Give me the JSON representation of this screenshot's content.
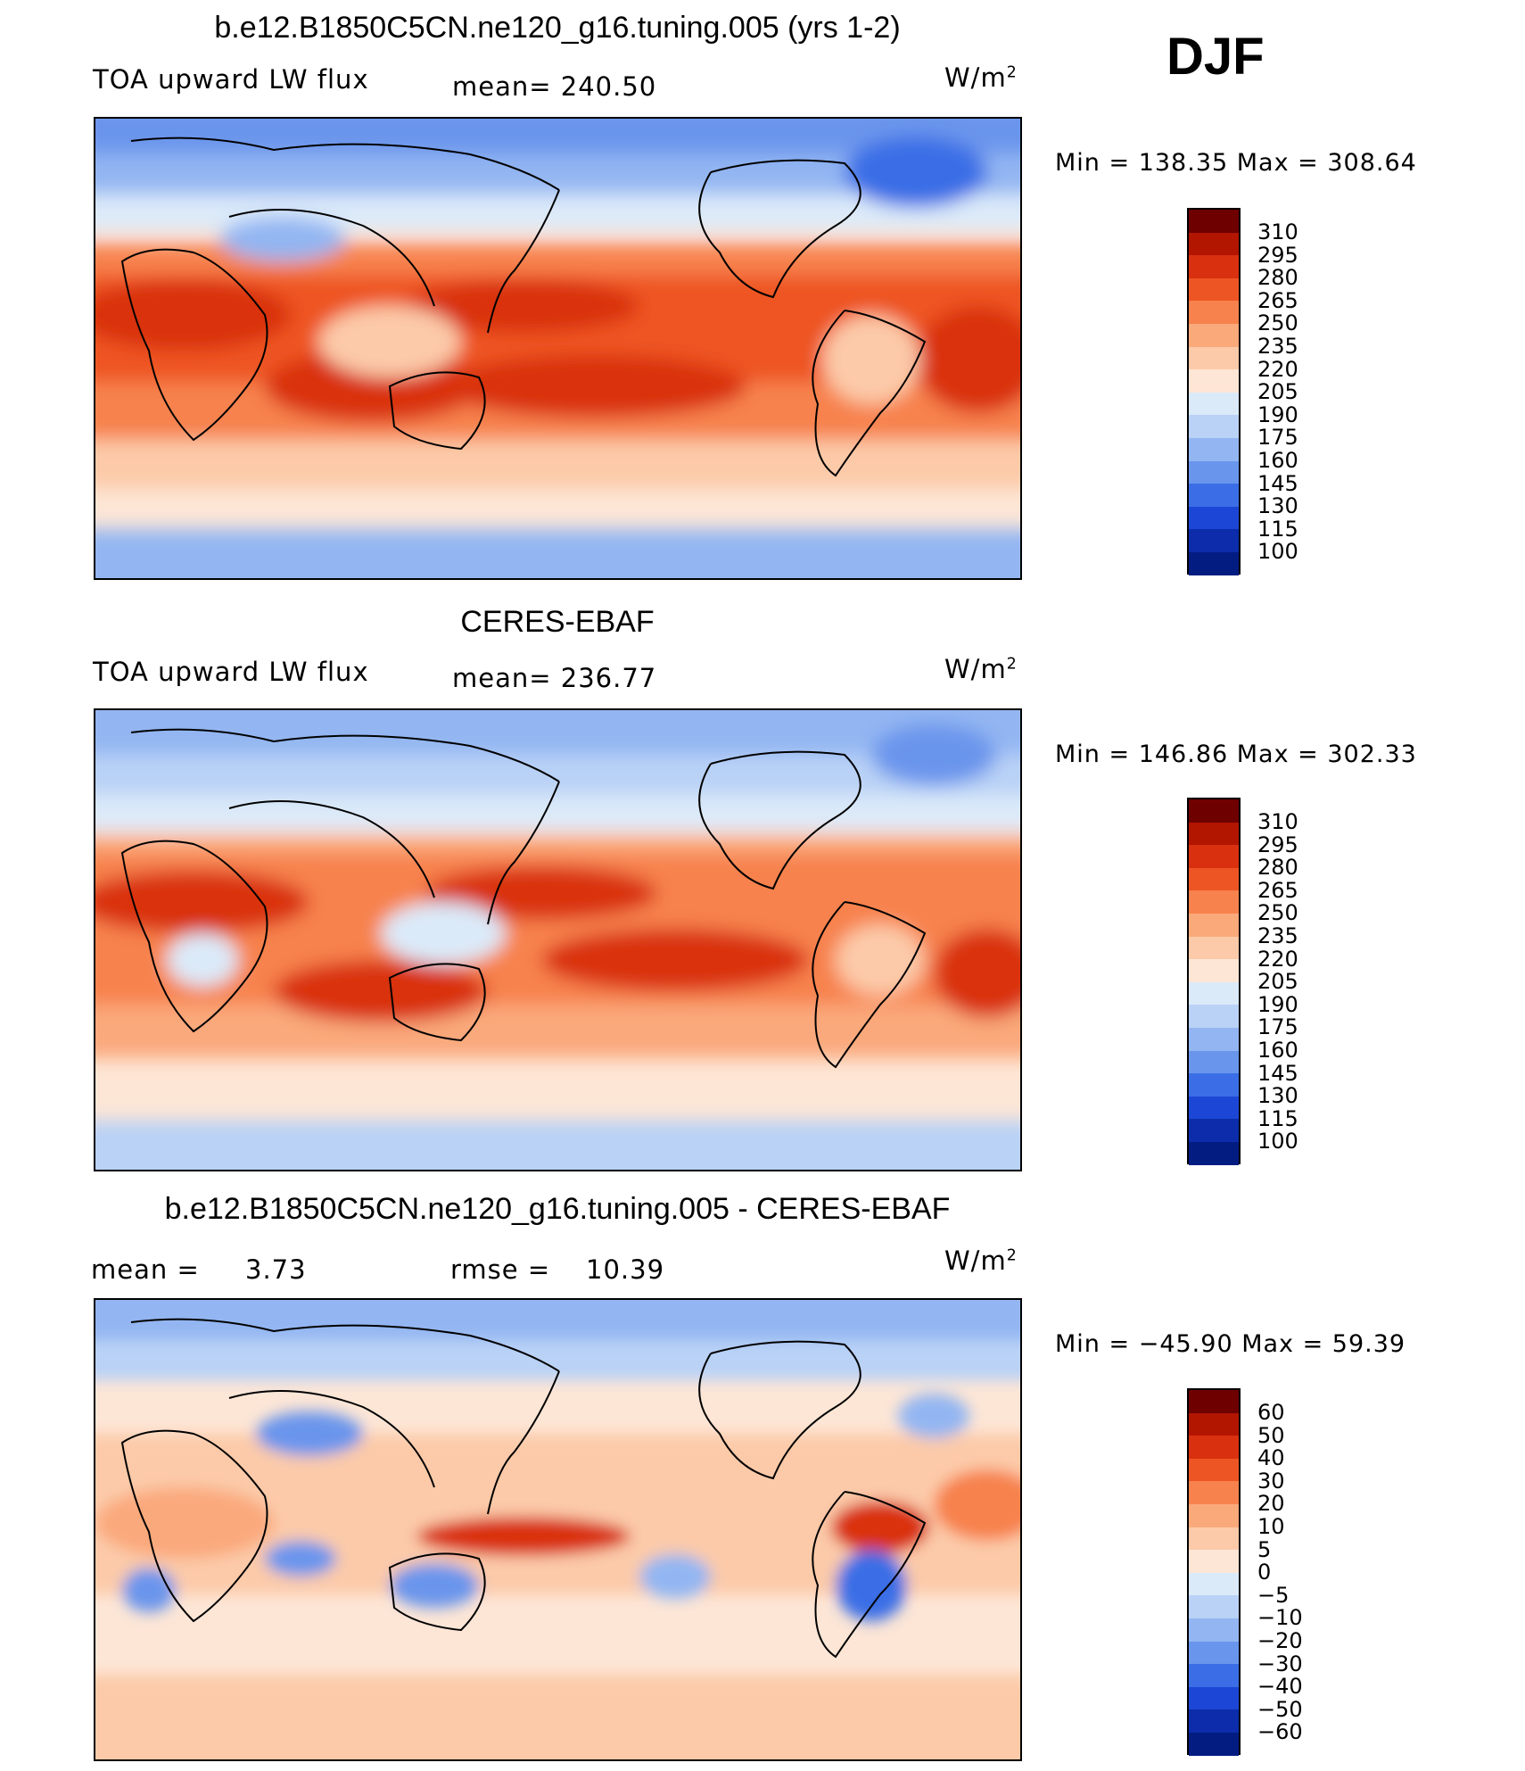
{
  "season": "DJF",
  "units_base": "W/m",
  "units_exp": "2",
  "panels": [
    {
      "title": "b.e12.B1850C5CN.ne120_g16.tuning.005 (yrs 1-2)",
      "variable": "TOA upward LW flux",
      "mean_text": "mean= 240.50",
      "minmax": "Min = 138.35 Max = 308.64",
      "colorbar_labels": [
        "310",
        "295",
        "280",
        "265",
        "250",
        "235",
        "220",
        "205",
        "190",
        "175",
        "160",
        "145",
        "130",
        "115",
        "100"
      ]
    },
    {
      "title": "CERES-EBAF",
      "variable": "TOA upward LW flux",
      "mean_text": "mean= 236.77",
      "minmax": "Min = 146.86 Max = 302.33",
      "colorbar_labels": [
        "310",
        "295",
        "280",
        "265",
        "250",
        "235",
        "220",
        "205",
        "190",
        "175",
        "160",
        "145",
        "130",
        "115",
        "100"
      ]
    },
    {
      "title": "b.e12.B1850C5CN.ne120_g16.tuning.005 - CERES-EBAF",
      "mean_label": "mean =",
      "mean_value": "3.73",
      "rmse_label": "rmse =",
      "rmse_value": "10.39",
      "minmax": "Min = −45.90 Max =  59.39",
      "colorbar_labels": [
        "60",
        "50",
        "40",
        "30",
        "20",
        "10",
        "5",
        "0",
        "−5",
        "−10",
        "−20",
        "−30",
        "−40",
        "−50",
        "−60"
      ]
    }
  ],
  "palette": [
    "#6e0000",
    "#b21500",
    "#d93010",
    "#ee5524",
    "#f7824d",
    "#faa97b",
    "#fccaa9",
    "#fde6d6",
    "#dbeaf9",
    "#b9d2f6",
    "#93b6f2",
    "#6a95ec",
    "#3b6ee6",
    "#1c47d6",
    "#0c2cab",
    "#021c82"
  ]
}
